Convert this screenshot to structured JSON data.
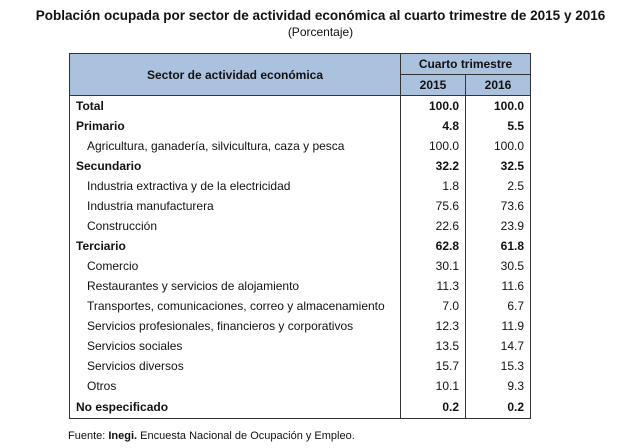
{
  "title": "Población ocupada por sector de actividad económica al cuarto trimestre de 2015 y 2016",
  "subtitle": "(Porcentaje)",
  "table": {
    "col_sector": "Sector de actividad económica",
    "col_group": "Cuarto trimestre",
    "years": [
      "2015",
      "2016"
    ],
    "rows": [
      {
        "label": "Total",
        "v2015": "100.0",
        "v2016": "100.0",
        "bold": true
      },
      {
        "label": "Primario",
        "v2015": "4.8",
        "v2016": "5.5",
        "bold": true
      },
      {
        "label": "Agricultura, ganadería, silvicultura, caza y pesca",
        "v2015": "100.0",
        "v2016": "100.0"
      },
      {
        "label": "Secundario",
        "v2015": "32.2",
        "v2016": "32.5",
        "bold": true
      },
      {
        "label": "Industria extractiva y de la electricidad",
        "v2015": "1.8",
        "v2016": "2.5"
      },
      {
        "label": "Industria manufacturera",
        "v2015": "75.6",
        "v2016": "73.6"
      },
      {
        "label": "Construcción",
        "v2015": "22.6",
        "v2016": "23.9"
      },
      {
        "label": "Terciario",
        "v2015": "62.8",
        "v2016": "61.8",
        "bold": true
      },
      {
        "label": "Comercio",
        "v2015": "30.1",
        "v2016": "30.5"
      },
      {
        "label": "Restaurantes y servicios de alojamiento",
        "v2015": "11.3",
        "v2016": "11.6"
      },
      {
        "label": "Transportes, comunicaciones, correo y almacenamiento",
        "v2015": "7.0",
        "v2016": "6.7"
      },
      {
        "label": "Servicios profesionales, financieros y corporativos",
        "v2015": "12.3",
        "v2016": "11.9"
      },
      {
        "label": "Servicios sociales",
        "v2015": "13.5",
        "v2016": "14.7"
      },
      {
        "label": "Servicios diversos",
        "v2015": "15.7",
        "v2016": "15.3"
      },
      {
        "label": "Otros",
        "v2015": "10.1",
        "v2016": "9.3"
      },
      {
        "label": "No especificado",
        "v2015": "0.2",
        "v2016": "0.2",
        "bold": true
      }
    ]
  },
  "source": {
    "prefix": "Fuente: ",
    "org": "Inegi.",
    "text": " Encuesta Nacional de Ocupación y Empleo."
  }
}
